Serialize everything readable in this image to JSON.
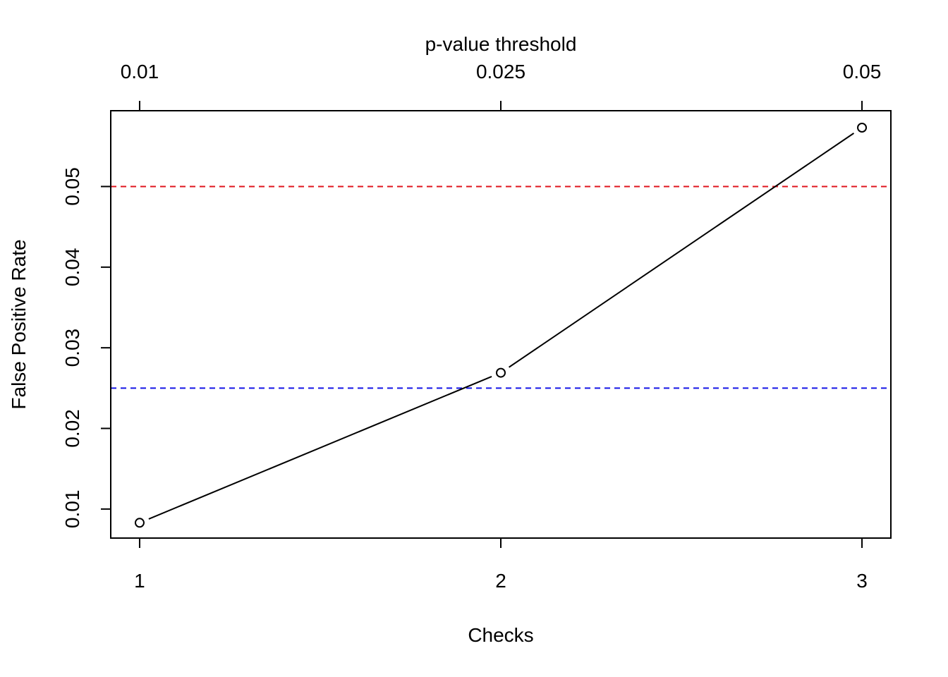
{
  "chart_data": {
    "type": "line",
    "title": "",
    "xlabel": "Checks",
    "ylabel": "False Positive Rate",
    "top_axis_label": "p-value threshold",
    "x": [
      1,
      2,
      3
    ],
    "x_tick_labels": [
      "1",
      "2",
      "3"
    ],
    "top_tick_labels": [
      "0.01",
      "0.025",
      "0.05"
    ],
    "xlim": [
      0.92,
      3.08
    ],
    "ylim": [
      0.0064,
      0.0594
    ],
    "y_ticks": [
      0.01,
      0.02,
      0.03,
      0.04,
      0.05
    ],
    "y_tick_labels": [
      "0.01",
      "0.02",
      "0.03",
      "0.04",
      "0.05"
    ],
    "series": [
      {
        "values": [
          0.0083,
          0.0269,
          0.0573
        ],
        "color": "#000000",
        "marker": "open-circle"
      }
    ],
    "reference_lines": [
      {
        "y": 0.05,
        "color": "#e0141e",
        "style": "dashed"
      },
      {
        "y": 0.025,
        "color": "#1414e6",
        "style": "dashed"
      }
    ],
    "grid": false,
    "legend": "none"
  }
}
